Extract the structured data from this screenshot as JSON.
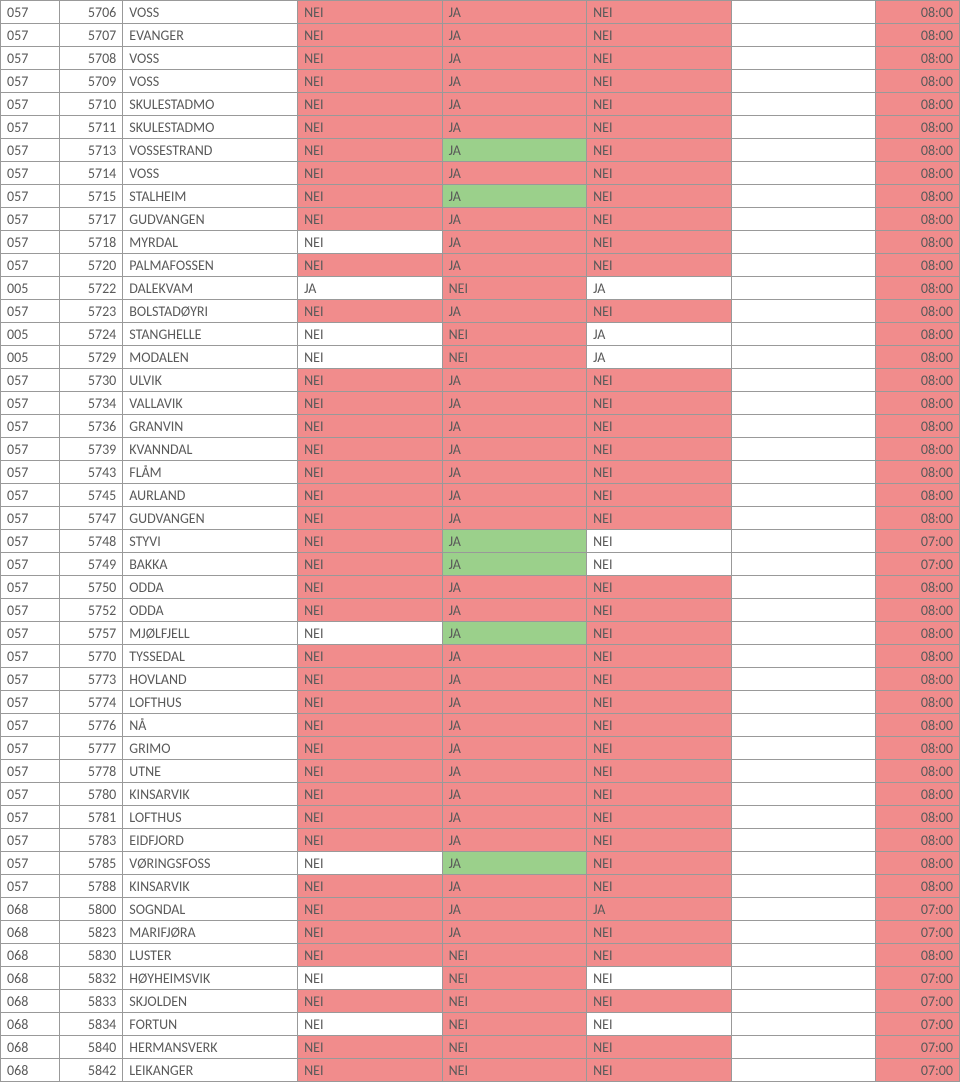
{
  "colors": {
    "red": "#f18c8c",
    "green": "#9bd08b",
    "white": "#ffffff",
    "text": "#5a5a5a",
    "border": "#999999"
  },
  "rows": [
    {
      "a": "057",
      "b": "5706",
      "c": "VOSS",
      "d": "NEI",
      "dC": "red",
      "e": "JA",
      "eC": "red",
      "f": "NEI",
      "fC": "red",
      "g": "",
      "gC": "white",
      "h": "08:00",
      "hC": "red"
    },
    {
      "a": "057",
      "b": "5707",
      "c": "EVANGER",
      "d": "NEI",
      "dC": "red",
      "e": "JA",
      "eC": "red",
      "f": "NEI",
      "fC": "red",
      "g": "",
      "gC": "white",
      "h": "08:00",
      "hC": "red"
    },
    {
      "a": "057",
      "b": "5708",
      "c": "VOSS",
      "d": "NEI",
      "dC": "red",
      "e": "JA",
      "eC": "red",
      "f": "NEI",
      "fC": "red",
      "g": "",
      "gC": "white",
      "h": "08:00",
      "hC": "red"
    },
    {
      "a": "057",
      "b": "5709",
      "c": "VOSS",
      "d": "NEI",
      "dC": "red",
      "e": "JA",
      "eC": "red",
      "f": "NEI",
      "fC": "red",
      "g": "",
      "gC": "white",
      "h": "08:00",
      "hC": "red"
    },
    {
      "a": "057",
      "b": "5710",
      "c": "SKULESTADMO",
      "d": "NEI",
      "dC": "red",
      "e": "JA",
      "eC": "red",
      "f": "NEI",
      "fC": "red",
      "g": "",
      "gC": "white",
      "h": "08:00",
      "hC": "red"
    },
    {
      "a": "057",
      "b": "5711",
      "c": "SKULESTADMO",
      "d": "NEI",
      "dC": "red",
      "e": "JA",
      "eC": "red",
      "f": "NEI",
      "fC": "red",
      "g": "",
      "gC": "white",
      "h": "08:00",
      "hC": "red"
    },
    {
      "a": "057",
      "b": "5713",
      "c": "VOSSESTRAND",
      "d": "NEI",
      "dC": "red",
      "e": "JA",
      "eC": "green",
      "f": "NEI",
      "fC": "red",
      "g": "",
      "gC": "white",
      "h": "08:00",
      "hC": "red"
    },
    {
      "a": "057",
      "b": "5714",
      "c": "VOSS",
      "d": "NEI",
      "dC": "red",
      "e": "JA",
      "eC": "red",
      "f": "NEI",
      "fC": "red",
      "g": "",
      "gC": "white",
      "h": "08:00",
      "hC": "red"
    },
    {
      "a": "057",
      "b": "5715",
      "c": "STALHEIM",
      "d": "NEI",
      "dC": "red",
      "e": "JA",
      "eC": "green",
      "f": "NEI",
      "fC": "red",
      "g": "",
      "gC": "white",
      "h": "08:00",
      "hC": "red"
    },
    {
      "a": "057",
      "b": "5717",
      "c": "GUDVANGEN",
      "d": "NEI",
      "dC": "red",
      "e": "JA",
      "eC": "red",
      "f": "NEI",
      "fC": "red",
      "g": "",
      "gC": "white",
      "h": "08:00",
      "hC": "red"
    },
    {
      "a": "057",
      "b": "5718",
      "c": "MYRDAL",
      "d": "NEI",
      "dC": "white",
      "e": "JA",
      "eC": "red",
      "f": "NEI",
      "fC": "red",
      "g": "",
      "gC": "white",
      "h": "08:00",
      "hC": "red"
    },
    {
      "a": "057",
      "b": "5720",
      "c": "PALMAFOSSEN",
      "d": "NEI",
      "dC": "red",
      "e": "JA",
      "eC": "red",
      "f": "NEI",
      "fC": "red",
      "g": "",
      "gC": "white",
      "h": "08:00",
      "hC": "red"
    },
    {
      "a": "005",
      "b": "5722",
      "c": "DALEKVAM",
      "d": "JA",
      "dC": "white",
      "e": "NEI",
      "eC": "red",
      "f": "JA",
      "fC": "white",
      "g": "",
      "gC": "white",
      "h": "08:00",
      "hC": "red"
    },
    {
      "a": "057",
      "b": "5723",
      "c": "BOLSTADØYRI",
      "d": "NEI",
      "dC": "red",
      "e": "JA",
      "eC": "red",
      "f": "NEI",
      "fC": "red",
      "g": "",
      "gC": "white",
      "h": "08:00",
      "hC": "red"
    },
    {
      "a": "005",
      "b": "5724",
      "c": "STANGHELLE",
      "d": "NEI",
      "dC": "white",
      "e": "NEI",
      "eC": "red",
      "f": "JA",
      "fC": "white",
      "g": "",
      "gC": "white",
      "h": "08:00",
      "hC": "red"
    },
    {
      "a": "005",
      "b": "5729",
      "c": "MODALEN",
      "d": "NEI",
      "dC": "white",
      "e": "NEI",
      "eC": "red",
      "f": "JA",
      "fC": "white",
      "g": "",
      "gC": "white",
      "h": "08:00",
      "hC": "red"
    },
    {
      "a": "057",
      "b": "5730",
      "c": "ULVIK",
      "d": "NEI",
      "dC": "red",
      "e": "JA",
      "eC": "red",
      "f": "NEI",
      "fC": "red",
      "g": "",
      "gC": "white",
      "h": "08:00",
      "hC": "red"
    },
    {
      "a": "057",
      "b": "5734",
      "c": "VALLAVIK",
      "d": "NEI",
      "dC": "red",
      "e": "JA",
      "eC": "red",
      "f": "NEI",
      "fC": "red",
      "g": "",
      "gC": "white",
      "h": "08:00",
      "hC": "red"
    },
    {
      "a": "057",
      "b": "5736",
      "c": "GRANVIN",
      "d": "NEI",
      "dC": "red",
      "e": "JA",
      "eC": "red",
      "f": "NEI",
      "fC": "red",
      "g": "",
      "gC": "white",
      "h": "08:00",
      "hC": "red"
    },
    {
      "a": "057",
      "b": "5739",
      "c": "KVANNDAL",
      "d": "NEI",
      "dC": "red",
      "e": "JA",
      "eC": "red",
      "f": "NEI",
      "fC": "red",
      "g": "",
      "gC": "white",
      "h": "08:00",
      "hC": "red"
    },
    {
      "a": "057",
      "b": "5743",
      "c": "FLÅM",
      "d": "NEI",
      "dC": "red",
      "e": "JA",
      "eC": "red",
      "f": "NEI",
      "fC": "red",
      "g": "",
      "gC": "white",
      "h": "08:00",
      "hC": "red"
    },
    {
      "a": "057",
      "b": "5745",
      "c": "AURLAND",
      "d": "NEI",
      "dC": "red",
      "e": "JA",
      "eC": "red",
      "f": "NEI",
      "fC": "red",
      "g": "",
      "gC": "white",
      "h": "08:00",
      "hC": "red"
    },
    {
      "a": "057",
      "b": "5747",
      "c": "GUDVANGEN",
      "d": "NEI",
      "dC": "red",
      "e": "JA",
      "eC": "red",
      "f": "NEI",
      "fC": "red",
      "g": "",
      "gC": "white",
      "h": "08:00",
      "hC": "red"
    },
    {
      "a": "057",
      "b": "5748",
      "c": "STYVI",
      "d": "NEI",
      "dC": "red",
      "e": "JA",
      "eC": "green",
      "f": "NEI",
      "fC": "white",
      "g": "",
      "gC": "white",
      "h": "07:00",
      "hC": "red"
    },
    {
      "a": "057",
      "b": "5749",
      "c": "BAKKA",
      "d": "NEI",
      "dC": "red",
      "e": "JA",
      "eC": "green",
      "f": "NEI",
      "fC": "white",
      "g": "",
      "gC": "white",
      "h": "07:00",
      "hC": "red"
    },
    {
      "a": "057",
      "b": "5750",
      "c": "ODDA",
      "d": "NEI",
      "dC": "red",
      "e": "JA",
      "eC": "red",
      "f": "NEI",
      "fC": "red",
      "g": "",
      "gC": "white",
      "h": "08:00",
      "hC": "red"
    },
    {
      "a": "057",
      "b": "5752",
      "c": "ODDA",
      "d": "NEI",
      "dC": "red",
      "e": "JA",
      "eC": "red",
      "f": "NEI",
      "fC": "red",
      "g": "",
      "gC": "white",
      "h": "08:00",
      "hC": "red"
    },
    {
      "a": "057",
      "b": "5757",
      "c": "MJØLFJELL",
      "d": "NEI",
      "dC": "white",
      "e": "JA",
      "eC": "green",
      "f": "NEI",
      "fC": "red",
      "g": "",
      "gC": "white",
      "h": "08:00",
      "hC": "red"
    },
    {
      "a": "057",
      "b": "5770",
      "c": "TYSSEDAL",
      "d": "NEI",
      "dC": "red",
      "e": "JA",
      "eC": "red",
      "f": "NEI",
      "fC": "red",
      "g": "",
      "gC": "white",
      "h": "08:00",
      "hC": "red"
    },
    {
      "a": "057",
      "b": "5773",
      "c": "HOVLAND",
      "d": "NEI",
      "dC": "red",
      "e": "JA",
      "eC": "red",
      "f": "NEI",
      "fC": "red",
      "g": "",
      "gC": "white",
      "h": "08:00",
      "hC": "red"
    },
    {
      "a": "057",
      "b": "5774",
      "c": "LOFTHUS",
      "d": "NEI",
      "dC": "red",
      "e": "JA",
      "eC": "red",
      "f": "NEI",
      "fC": "red",
      "g": "",
      "gC": "white",
      "h": "08:00",
      "hC": "red"
    },
    {
      "a": "057",
      "b": "5776",
      "c": "NÅ",
      "d": "NEI",
      "dC": "red",
      "e": "JA",
      "eC": "red",
      "f": "NEI",
      "fC": "red",
      "g": "",
      "gC": "white",
      "h": "08:00",
      "hC": "red"
    },
    {
      "a": "057",
      "b": "5777",
      "c": "GRIMO",
      "d": "NEI",
      "dC": "red",
      "e": "JA",
      "eC": "red",
      "f": "NEI",
      "fC": "red",
      "g": "",
      "gC": "white",
      "h": "08:00",
      "hC": "red"
    },
    {
      "a": "057",
      "b": "5778",
      "c": "UTNE",
      "d": "NEI",
      "dC": "red",
      "e": "JA",
      "eC": "red",
      "f": "NEI",
      "fC": "red",
      "g": "",
      "gC": "white",
      "h": "08:00",
      "hC": "red"
    },
    {
      "a": "057",
      "b": "5780",
      "c": "KINSARVIK",
      "d": "NEI",
      "dC": "red",
      "e": "JA",
      "eC": "red",
      "f": "NEI",
      "fC": "red",
      "g": "",
      "gC": "white",
      "h": "08:00",
      "hC": "red"
    },
    {
      "a": "057",
      "b": "5781",
      "c": "LOFTHUS",
      "d": "NEI",
      "dC": "red",
      "e": "JA",
      "eC": "red",
      "f": "NEI",
      "fC": "red",
      "g": "",
      "gC": "white",
      "h": "08:00",
      "hC": "red"
    },
    {
      "a": "057",
      "b": "5783",
      "c": "EIDFJORD",
      "d": "NEI",
      "dC": "red",
      "e": "JA",
      "eC": "red",
      "f": "NEI",
      "fC": "red",
      "g": "",
      "gC": "white",
      "h": "08:00",
      "hC": "red"
    },
    {
      "a": "057",
      "b": "5785",
      "c": "VØRINGSFOSS",
      "d": "NEI",
      "dC": "white",
      "e": "JA",
      "eC": "green",
      "f": "NEI",
      "fC": "red",
      "g": "",
      "gC": "white",
      "h": "08:00",
      "hC": "red"
    },
    {
      "a": "057",
      "b": "5788",
      "c": "KINSARVIK",
      "d": "NEI",
      "dC": "red",
      "e": "JA",
      "eC": "red",
      "f": "NEI",
      "fC": "red",
      "g": "",
      "gC": "white",
      "h": "08:00",
      "hC": "red"
    },
    {
      "a": "068",
      "b": "5800",
      "c": "SOGNDAL",
      "d": "NEI",
      "dC": "red",
      "e": "JA",
      "eC": "red",
      "f": "JA",
      "fC": "red",
      "g": "",
      "gC": "white",
      "h": "07:00",
      "hC": "red"
    },
    {
      "a": "068",
      "b": "5823",
      "c": "MARIFJØRA",
      "d": "NEI",
      "dC": "red",
      "e": "JA",
      "eC": "red",
      "f": "NEI",
      "fC": "red",
      "g": "",
      "gC": "white",
      "h": "07:00",
      "hC": "red"
    },
    {
      "a": "068",
      "b": "5830",
      "c": "LUSTER",
      "d": "NEI",
      "dC": "red",
      "e": "NEI",
      "eC": "red",
      "f": "NEI",
      "fC": "red",
      "g": "",
      "gC": "white",
      "h": "08:00",
      "hC": "red"
    },
    {
      "a": "068",
      "b": "5832",
      "c": "HØYHEIMSVIK",
      "d": "NEI",
      "dC": "white",
      "e": "NEI",
      "eC": "red",
      "f": "NEI",
      "fC": "white",
      "g": "",
      "gC": "white",
      "h": "07:00",
      "hC": "red"
    },
    {
      "a": "068",
      "b": "5833",
      "c": "SKJOLDEN",
      "d": "NEI",
      "dC": "red",
      "e": "NEI",
      "eC": "red",
      "f": "NEI",
      "fC": "red",
      "g": "",
      "gC": "white",
      "h": "07:00",
      "hC": "red"
    },
    {
      "a": "068",
      "b": "5834",
      "c": "FORTUN",
      "d": "NEI",
      "dC": "white",
      "e": "NEI",
      "eC": "red",
      "f": "NEI",
      "fC": "white",
      "g": "",
      "gC": "white",
      "h": "07:00",
      "hC": "red"
    },
    {
      "a": "068",
      "b": "5840",
      "c": "HERMANSVERK",
      "d": "NEI",
      "dC": "red",
      "e": "NEI",
      "eC": "red",
      "f": "NEI",
      "fC": "red",
      "g": "",
      "gC": "white",
      "h": "07:00",
      "hC": "red"
    },
    {
      "a": "068",
      "b": "5842",
      "c": "LEIKANGER",
      "d": "NEI",
      "dC": "red",
      "e": "NEI",
      "eC": "red",
      "f": "NEI",
      "fC": "red",
      "g": "",
      "gC": "white",
      "h": "07:00",
      "hC": "red"
    }
  ]
}
